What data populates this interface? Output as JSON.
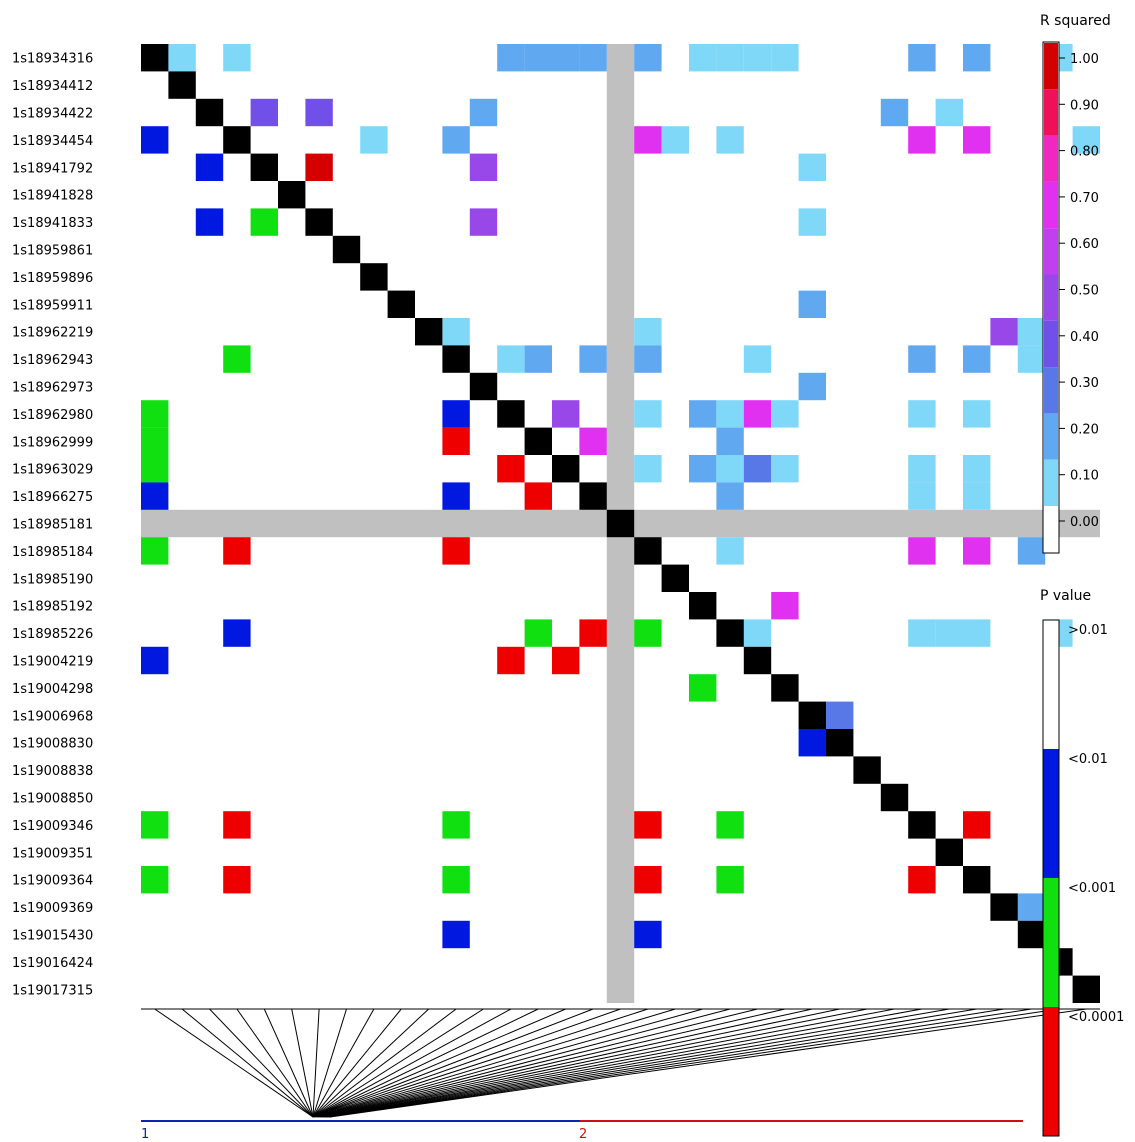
{
  "chart_data": {
    "type": "heatmap",
    "snps": [
      "1s18934316",
      "1s18934412",
      "1s18934422",
      "1s18934454",
      "1s18941792",
      "1s18941828",
      "1s18941833",
      "1s18959861",
      "1s18959896",
      "1s18959911",
      "1s18962219",
      "1s18962943",
      "1s18962973",
      "1s18962980",
      "1s18962999",
      "1s18963029",
      "1s18966275",
      "1s18985181",
      "1s18985184",
      "1s18985190",
      "1s18985192",
      "1s18985226",
      "1s19004219",
      "1s19004298",
      "1s19006968",
      "1s19008830",
      "1s19008838",
      "1s19008850",
      "1s19009346",
      "1s19009351",
      "1s19009364",
      "1s19009369",
      "1s19015430",
      "1s19016424",
      "1s19017315"
    ],
    "masked_snp_index": 17,
    "r_squared_cells": [
      [
        0,
        1,
        0.1
      ],
      [
        0,
        3,
        0.1
      ],
      [
        0,
        13,
        0.2
      ],
      [
        0,
        14,
        0.2
      ],
      [
        0,
        15,
        0.2
      ],
      [
        0,
        16,
        0.2
      ],
      [
        0,
        18,
        0.2
      ],
      [
        0,
        20,
        0.1
      ],
      [
        0,
        21,
        0.1
      ],
      [
        0,
        22,
        0.15
      ],
      [
        0,
        23,
        0.1
      ],
      [
        0,
        28,
        0.2
      ],
      [
        0,
        30,
        0.2
      ],
      [
        0,
        33,
        0.1
      ],
      [
        2,
        4,
        0.4
      ],
      [
        2,
        6,
        0.4
      ],
      [
        2,
        12,
        0.2
      ],
      [
        2,
        27,
        0.2
      ],
      [
        2,
        29,
        0.1
      ],
      [
        3,
        8,
        0.1
      ],
      [
        3,
        11,
        0.2
      ],
      [
        3,
        18,
        0.7
      ],
      [
        3,
        19,
        0.1
      ],
      [
        3,
        21,
        0.1
      ],
      [
        3,
        28,
        0.7
      ],
      [
        3,
        30,
        0.7
      ],
      [
        3,
        34,
        0.1
      ],
      [
        4,
        6,
        1.0
      ],
      [
        4,
        12,
        0.5
      ],
      [
        4,
        24,
        0.1
      ],
      [
        6,
        12,
        0.5
      ],
      [
        6,
        24,
        0.1
      ],
      [
        9,
        24,
        0.2
      ],
      [
        10,
        11,
        0.1
      ],
      [
        10,
        18,
        0.1
      ],
      [
        10,
        31,
        0.5
      ],
      [
        10,
        32,
        0.1
      ],
      [
        11,
        13,
        0.1
      ],
      [
        11,
        14,
        0.2
      ],
      [
        11,
        16,
        0.2
      ],
      [
        11,
        18,
        0.2
      ],
      [
        11,
        22,
        0.1
      ],
      [
        11,
        28,
        0.2
      ],
      [
        11,
        30,
        0.2
      ],
      [
        11,
        32,
        0.1
      ],
      [
        12,
        24,
        0.2
      ],
      [
        13,
        15,
        0.5
      ],
      [
        13,
        18,
        0.1
      ],
      [
        13,
        20,
        0.2
      ],
      [
        13,
        21,
        0.1
      ],
      [
        13,
        22,
        0.7
      ],
      [
        13,
        23,
        0.1
      ],
      [
        13,
        28,
        0.1
      ],
      [
        13,
        30,
        0.1
      ],
      [
        14,
        16,
        0.7
      ],
      [
        14,
        21,
        0.2
      ],
      [
        15,
        18,
        0.1
      ],
      [
        15,
        20,
        0.2
      ],
      [
        15,
        21,
        0.1
      ],
      [
        15,
        22,
        0.3
      ],
      [
        15,
        23,
        0.1
      ],
      [
        15,
        28,
        0.1
      ],
      [
        15,
        30,
        0.1
      ],
      [
        16,
        21,
        0.2
      ],
      [
        16,
        28,
        0.1
      ],
      [
        16,
        30,
        0.1
      ],
      [
        18,
        21,
        0.1
      ],
      [
        18,
        28,
        0.7
      ],
      [
        18,
        30,
        0.7
      ],
      [
        18,
        32,
        0.2
      ],
      [
        20,
        23,
        0.7
      ],
      [
        21,
        22,
        0.1
      ],
      [
        21,
        28,
        0.1
      ],
      [
        21,
        29,
        0.1
      ],
      [
        21,
        30,
        0.1
      ],
      [
        21,
        33,
        0.1
      ],
      [
        24,
        25,
        0.3
      ],
      [
        31,
        32,
        0.2
      ]
    ],
    "p_value_cells": [
      [
        3,
        0,
        "<0.01"
      ],
      [
        4,
        2,
        "<0.01"
      ],
      [
        6,
        2,
        "<0.01"
      ],
      [
        6,
        4,
        "<0.001"
      ],
      [
        11,
        3,
        "<0.001"
      ],
      [
        13,
        0,
        "<0.001"
      ],
      [
        14,
        0,
        "<0.001"
      ],
      [
        15,
        0,
        "<0.001"
      ],
      [
        16,
        0,
        "<0.01"
      ],
      [
        13,
        11,
        "<0.01"
      ],
      [
        14,
        11,
        "<0.0001"
      ],
      [
        15,
        13,
        "<0.0001"
      ],
      [
        16,
        11,
        "<0.01"
      ],
      [
        16,
        14,
        "<0.0001"
      ],
      [
        18,
        0,
        "<0.001"
      ],
      [
        18,
        3,
        "<0.0001"
      ],
      [
        18,
        11,
        "<0.0001"
      ],
      [
        21,
        3,
        "<0.01"
      ],
      [
        21,
        14,
        "<0.001"
      ],
      [
        21,
        16,
        "<0.0001"
      ],
      [
        21,
        18,
        "<0.001"
      ],
      [
        22,
        0,
        "<0.01"
      ],
      [
        22,
        13,
        "<0.0001"
      ],
      [
        22,
        15,
        "<0.0001"
      ],
      [
        23,
        20,
        "<0.001"
      ],
      [
        25,
        24,
        "<0.01"
      ],
      [
        28,
        0,
        "<0.001"
      ],
      [
        28,
        3,
        "<0.0001"
      ],
      [
        28,
        11,
        "<0.001"
      ],
      [
        28,
        18,
        "<0.0001"
      ],
      [
        28,
        21,
        "<0.001"
      ],
      [
        28,
        30,
        "<0.0001"
      ],
      [
        30,
        0,
        "<0.001"
      ],
      [
        30,
        3,
        "<0.0001"
      ],
      [
        30,
        11,
        "<0.001"
      ],
      [
        30,
        18,
        "<0.0001"
      ],
      [
        30,
        21,
        "<0.001"
      ],
      [
        30,
        28,
        "<0.0001"
      ],
      [
        32,
        11,
        "<0.01"
      ],
      [
        32,
        18,
        "<0.01"
      ]
    ],
    "r_squared_legend": {
      "title": "R squared",
      "ticks": [
        "1.00",
        "0.90",
        "0.80",
        "0.70",
        "0.60",
        "0.50",
        "0.40",
        "0.30",
        "0.20",
        "0.10",
        "0.00"
      ],
      "colors": [
        "#d40000",
        "#f0105a",
        "#f028c0",
        "#e030f0",
        "#c040f0",
        "#9848e8",
        "#7050e8",
        "#5878e8",
        "#60a8f0",
        "#80d8f8",
        "#ffffff"
      ]
    },
    "p_value_legend": {
      "title": "P value",
      "labels": [
        ">0.01",
        "<0.01",
        "<0.001",
        "<0.0001"
      ],
      "colors": [
        "#ffffff",
        "#0018e0",
        "#10e010",
        "#ee0000"
      ]
    },
    "groups": [
      {
        "label": "1",
        "color": "#1020b0"
      },
      {
        "label": "2",
        "color": "#d01010"
      }
    ],
    "colors": {
      "diagonal": "#000000",
      "masked": "#c0c0c0"
    }
  }
}
